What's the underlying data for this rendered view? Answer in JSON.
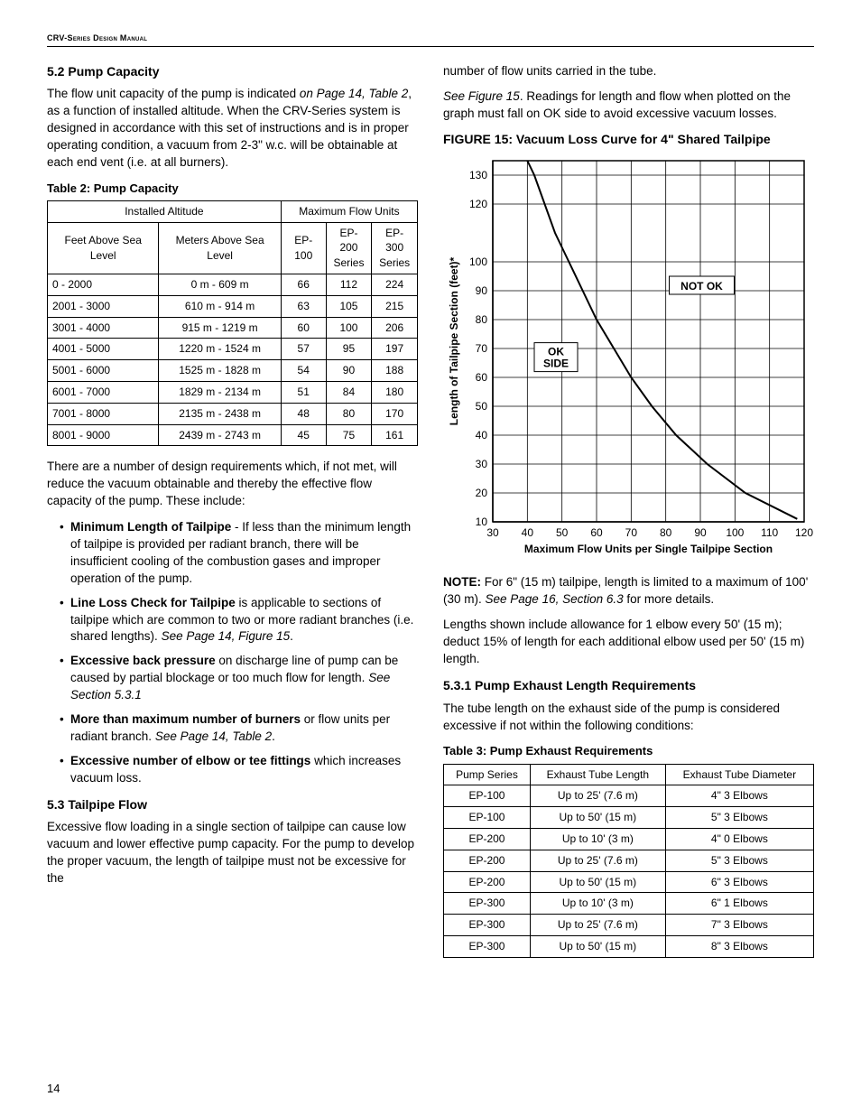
{
  "header": {
    "manual_title": "CRV-Series Design Manual"
  },
  "page_number": "14",
  "left": {
    "s52": {
      "heading": "5.2 Pump Capacity",
      "p1a": "The flow unit capacity of the pump is indicated ",
      "p1_ref": "on Page 14, Table 2",
      "p1b": ", as a function of installed altitude. When the CRV-Series system is designed in accordance with this set of instructions and is in proper operating condition, a vacuum from 2-3\" w.c. will be obtainable at each end vent (i.e. at all burners)."
    },
    "table2": {
      "caption": "Table 2: Pump Capacity",
      "h_altitude": "Installed Altitude",
      "h_maxflow": "Maximum Flow Units",
      "h_feet": "Feet Above Sea Level",
      "h_meters": "Meters Above Sea Level",
      "h_ep100": "EP-100",
      "h_ep200a": "EP-200",
      "h_ep200b": "Series",
      "h_ep300a": "EP-300",
      "h_ep300b": "Series",
      "rows": [
        {
          "ft": "0   - 2000",
          "m": "0 m - 609 m",
          "a": "66",
          "b": "112",
          "c": "224"
        },
        {
          "ft": "2001  - 3000",
          "m": "610 m - 914 m",
          "a": "63",
          "b": "105",
          "c": "215"
        },
        {
          "ft": "3001  - 4000",
          "m": "915 m - 1219 m",
          "a": "60",
          "b": "100",
          "c": "206"
        },
        {
          "ft": "4001  - 5000",
          "m": "1220 m - 1524 m",
          "a": "57",
          "b": "95",
          "c": "197"
        },
        {
          "ft": "5001  - 6000",
          "m": "1525 m - 1828 m",
          "a": "54",
          "b": "90",
          "c": "188"
        },
        {
          "ft": "6001  - 7000",
          "m": "1829 m - 2134 m",
          "a": "51",
          "b": "84",
          "c": "180"
        },
        {
          "ft": "7001  - 8000",
          "m": "2135 m - 2438 m",
          "a": "48",
          "b": "80",
          "c": "170"
        },
        {
          "ft": "8001  - 9000",
          "m": "2439 m - 2743 m",
          "a": "45",
          "b": "75",
          "c": "161"
        }
      ]
    },
    "after_t2": "There are a number of design requirements which, if not met, will reduce the vacuum obtainable and thereby the effective flow capacity of the pump. These include:",
    "bullets": {
      "b1_strong": "Minimum Length of Tailpipe",
      "b1_rest": " - If less than the minimum length of tailpipe is provided per radiant branch, there will be insufficient cooling of the combustion gases and improper operation of the pump.",
      "b2_strong": "Line Loss Check for Tailpipe",
      "b2_mid": " is applicable to sections of tailpipe which are common to two or more radiant branches (i.e. shared lengths). ",
      "b2_ref": "See Page 14, Figure 15",
      "b2_end": ".",
      "b3_strong": "Excessive back pressure",
      "b3_mid": " on discharge line of pump can be caused by partial blockage or too much flow for length. ",
      "b3_ref": "See Section 5.3.1",
      "b4_strong": "More than maximum number of burners",
      "b4_mid": " or flow units per radiant branch. ",
      "b4_ref": "See Page 14, Table 2",
      "b4_end": ".",
      "b5_strong": "Excessive number of elbow or tee fittings",
      "b5_rest": " which increases vacuum loss."
    },
    "s53": {
      "heading": "5.3 Tailpipe Flow",
      "p": "Excessive flow loading in a single section of tailpipe can cause low vacuum and lower effective pump capacity. For the pump to develop the proper vacuum, the length of tailpipe must not be excessive for the"
    }
  },
  "right": {
    "cont": "number of flow units carried in the tube.",
    "p2_ref": "See Figure 15",
    "p2_rest": ". Readings for length and flow when plotted on the graph must fall on OK side to avoid excessive vacuum losses.",
    "figure15": {
      "caption": "FIGURE 15: Vacuum Loss Curve for 4\" Shared Tailpipe",
      "y_label": "Length of  Tailpipe Section (feet)*",
      "x_label": "Maximum Flow Units per Single Tailpipe Section",
      "y_ticks": [
        "10",
        "20",
        "30",
        "40",
        "50",
        "60",
        "70",
        "80",
        "90",
        "100",
        "120",
        "130"
      ],
      "y_vals": [
        10,
        20,
        30,
        40,
        50,
        60,
        70,
        80,
        90,
        100,
        120,
        130
      ],
      "x_ticks": [
        "30",
        "40",
        "50",
        "60",
        "70",
        "80",
        "90",
        "100",
        "110",
        "120"
      ],
      "x_vals": [
        30,
        40,
        50,
        60,
        70,
        80,
        90,
        100,
        110,
        120
      ],
      "ok_label1": "OK",
      "ok_label2": "SIDE",
      "notok_label": "NOT  OK",
      "curve": [
        {
          "x": 40,
          "y": 135
        },
        {
          "x": 42,
          "y": 130
        },
        {
          "x": 45,
          "y": 120
        },
        {
          "x": 48,
          "y": 110
        },
        {
          "x": 52,
          "y": 100
        },
        {
          "x": 56,
          "y": 90
        },
        {
          "x": 60,
          "y": 80
        },
        {
          "x": 65,
          "y": 70
        },
        {
          "x": 70,
          "y": 60
        },
        {
          "x": 76,
          "y": 50
        },
        {
          "x": 83,
          "y": 40
        },
        {
          "x": 92,
          "y": 30
        },
        {
          "x": 103,
          "y": 20
        },
        {
          "x": 118,
          "y": 11
        }
      ],
      "style": {
        "grid_color": "#000000",
        "curve_color": "#000000",
        "curve_width": 2,
        "axis_font": 12,
        "label_font": 12
      }
    },
    "note_strong": "NOTE:",
    "note_a": " For 6\" (15 m) tailpipe, length is limited to a maximum of 100' (30 m). ",
    "note_ref": "See Page 16, Section 6.3",
    "note_b": " for more details.",
    "lengths_p": "Lengths shown include allowance for 1 elbow every 50' (15 m); deduct 15% of length for each additional elbow used per 50' (15 m) length.",
    "s531": {
      "heading": "5.3.1 Pump Exhaust Length Requirements",
      "p": "The tube length on the exhaust side of the pump is considered excessive if not within the following conditions:"
    },
    "table3": {
      "caption": "Table 3: Pump Exhaust Requirements",
      "h1": "Pump Series",
      "h2": "Exhaust Tube Length",
      "h3": "Exhaust Tube Diameter",
      "rows": [
        {
          "a": "EP-100",
          "b": "Up to 25' (7.6 m)",
          "c": "4\" 3 Elbows"
        },
        {
          "a": "EP-100",
          "b": "Up to 50' (15 m)",
          "c": "5\" 3 Elbows"
        },
        {
          "a": "EP-200",
          "b": "Up to 10' (3 m)",
          "c": "4\" 0 Elbows"
        },
        {
          "a": "EP-200",
          "b": "Up to 25' (7.6 m)",
          "c": "5\" 3 Elbows"
        },
        {
          "a": "EP-200",
          "b": "Up to 50' (15 m)",
          "c": "6\" 3 Elbows"
        },
        {
          "a": "EP-300",
          "b": "Up to 10' (3 m)",
          "c": "6\" 1 Elbows"
        },
        {
          "a": "EP-300",
          "b": "Up to 25' (7.6 m)",
          "c": "7\" 3 Elbows"
        },
        {
          "a": "EP-300",
          "b": "Up to 50' (15 m)",
          "c": "8\" 3 Elbows"
        }
      ]
    }
  }
}
